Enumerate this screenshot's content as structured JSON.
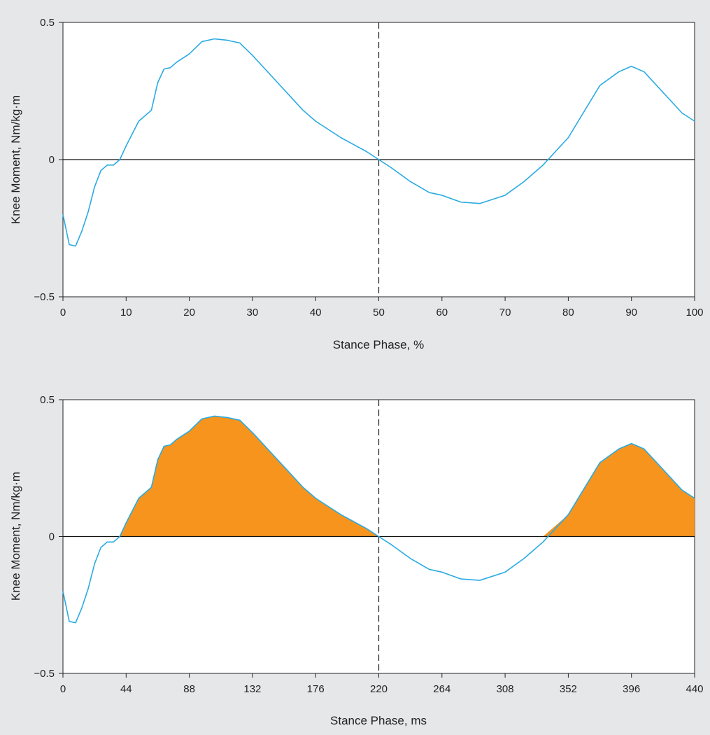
{
  "chart_data": [
    {
      "type": "line",
      "xlabel": "Stance Phase, %",
      "ylabel": "Knee Moment, Nm/kg·m",
      "xlim": [
        0,
        100
      ],
      "ylim": [
        -0.5,
        0.5
      ],
      "x_ticks": [
        "0",
        "10",
        "20",
        "30",
        "40",
        "50",
        "60",
        "70",
        "80",
        "90",
        "100"
      ],
      "y_ticks": [
        "0.5",
        "0",
        "−0.5"
      ],
      "grid": false,
      "zero_line": true,
      "marker_line": {
        "x": 50,
        "style": "dashed"
      },
      "line_color": "#29abe2",
      "fill_positive": false,
      "series": [
        {
          "x": [
            0,
            1,
            2,
            3,
            4,
            5,
            6,
            7,
            8,
            9,
            10,
            12,
            14,
            15,
            16,
            17,
            18,
            20,
            22,
            24,
            26,
            28,
            30,
            32,
            34,
            36,
            38,
            40,
            42,
            44,
            46,
            48,
            50,
            52,
            55,
            58,
            60,
            63,
            66,
            70,
            73,
            76,
            80,
            85,
            88,
            90,
            92,
            94,
            96,
            98,
            100
          ],
          "y": [
            -0.2,
            -0.31,
            -0.315,
            -0.26,
            -0.19,
            -0.1,
            -0.04,
            -0.02,
            -0.02,
            0.0,
            0.05,
            0.14,
            0.18,
            0.28,
            0.33,
            0.335,
            0.355,
            0.385,
            0.43,
            0.44,
            0.435,
            0.425,
            0.38,
            0.33,
            0.28,
            0.23,
            0.18,
            0.14,
            0.11,
            0.08,
            0.055,
            0.03,
            0.0,
            -0.03,
            -0.08,
            -0.12,
            -0.13,
            -0.155,
            -0.16,
            -0.13,
            -0.08,
            -0.02,
            0.08,
            0.27,
            0.32,
            0.34,
            0.32,
            0.27,
            0.22,
            0.17,
            0.14
          ]
        }
      ]
    },
    {
      "type": "area",
      "xlabel": "Stance Phase, ms",
      "ylabel": "Knee Moment, Nm/kg·m",
      "xlim": [
        0,
        440
      ],
      "ylim": [
        -0.5,
        0.5
      ],
      "x_ticks": [
        "0",
        "44",
        "88",
        "132",
        "176",
        "220",
        "264",
        "308",
        "352",
        "396",
        "440"
      ],
      "y_ticks": [
        "0.5",
        "0",
        "−0.5"
      ],
      "grid": false,
      "zero_line": true,
      "marker_line": {
        "x": 220,
        "style": "dashed"
      },
      "line_color": "#29abe2",
      "fill_positive": true,
      "fill_color": "#f7941d",
      "series": [
        {
          "x": [
            0,
            4.4,
            8.8,
            13.2,
            17.6,
            22,
            26.4,
            30.8,
            35.2,
            39.6,
            44,
            52.8,
            61.6,
            66,
            70.4,
            74.8,
            79.2,
            88,
            96.8,
            105.6,
            114.4,
            123.2,
            132,
            140.8,
            149.6,
            158.4,
            167.2,
            176,
            184.8,
            193.6,
            202.4,
            211.2,
            220,
            228.8,
            242,
            255.2,
            264,
            277.2,
            290.4,
            308,
            321.2,
            334.4,
            352,
            374,
            387.2,
            396,
            404.8,
            413.6,
            422.4,
            431.2,
            440
          ],
          "y": [
            -0.2,
            -0.31,
            -0.315,
            -0.26,
            -0.19,
            -0.1,
            -0.04,
            -0.02,
            -0.02,
            0.0,
            0.05,
            0.14,
            0.18,
            0.28,
            0.33,
            0.335,
            0.355,
            0.385,
            0.43,
            0.44,
            0.435,
            0.425,
            0.38,
            0.33,
            0.28,
            0.23,
            0.18,
            0.14,
            0.11,
            0.08,
            0.055,
            0.03,
            0.0,
            -0.03,
            -0.08,
            -0.12,
            -0.13,
            -0.155,
            -0.16,
            -0.13,
            -0.08,
            -0.02,
            0.08,
            0.27,
            0.32,
            0.34,
            0.32,
            0.27,
            0.22,
            0.17,
            0.14
          ]
        }
      ]
    }
  ]
}
